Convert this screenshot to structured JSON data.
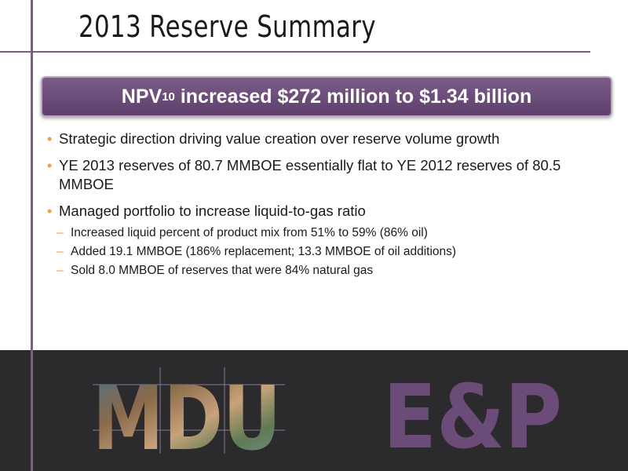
{
  "slide": {
    "title": "2013 Reserve Summary",
    "banner": {
      "prefix": "NPV",
      "subscript": "10",
      "suffix": " increased $272 million to $1.34 billion"
    },
    "bullets": [
      {
        "text": "Strategic direction driving value creation over reserve volume growth"
      },
      {
        "text": "YE 2013 reserves of 80.7 MMBOE essentially flat to YE 2012 reserves of 80.5 MMBOE"
      },
      {
        "text": "Managed portfolio to increase liquid-to-gas ratio"
      }
    ],
    "sub_bullets": [
      {
        "text": "Increased liquid percent of product mix from 51% to 59% (86% oil)"
      },
      {
        "text": "Added 19.1 MMBOE (186% replacement; 13.3 MMBOE of oil additions)"
      },
      {
        "text": "Sold 8.0 MMBOE of reserves that were 84% natural gas"
      }
    ]
  },
  "footer": {
    "logo_left": "MDU",
    "logo_right": "E&P"
  },
  "colors": {
    "accent_purple": "#6b4c78",
    "bullet_orange": "#e8a33d",
    "footer_bg": "#2b2a2c"
  }
}
